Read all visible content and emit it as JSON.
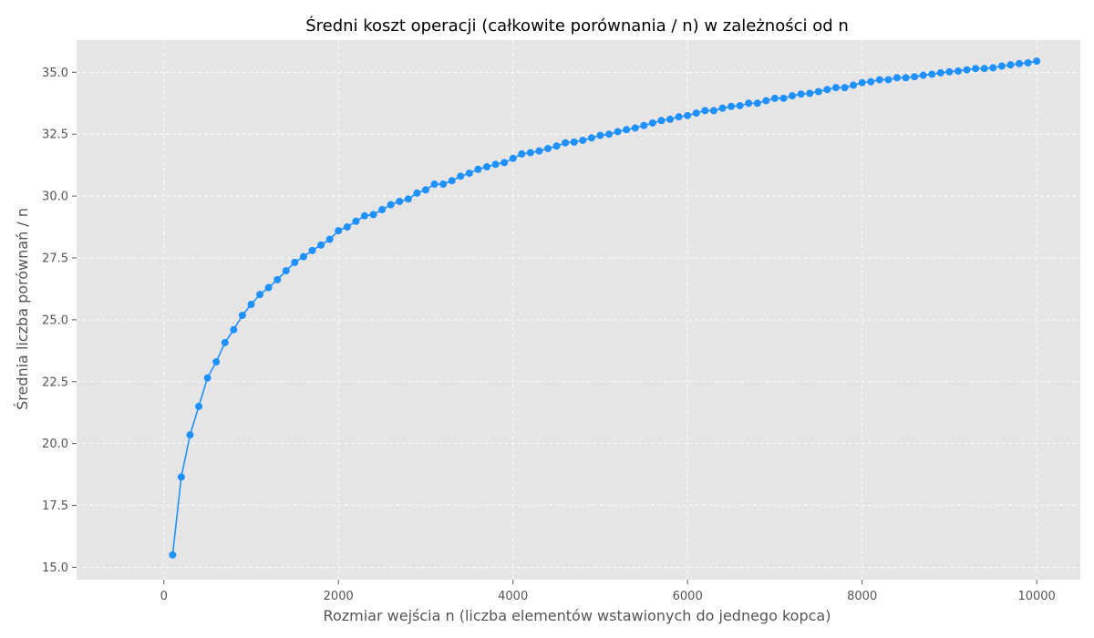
{
  "chart_data": {
    "type": "line",
    "title": "Średni koszt operacji (całkowite porównania / n) w zależności od n",
    "xlabel": "Rozmiar wejścia n (liczba elementów wstawionych do jednego kopca)",
    "ylabel": "Średnia liczba porównań / n",
    "xlim": [
      -1000,
      10500
    ],
    "ylim": [
      14.5,
      36.3
    ],
    "xticks": [
      0,
      2000,
      4000,
      6000,
      8000,
      10000
    ],
    "xtick_labels": [
      "0",
      "2000",
      "4000",
      "6000",
      "8000",
      "10000"
    ],
    "yticks": [
      15.0,
      17.5,
      20.0,
      22.5,
      25.0,
      27.5,
      30.0,
      32.5,
      35.0
    ],
    "ytick_labels": [
      "15.0",
      "17.5",
      "20.0",
      "22.5",
      "25.0",
      "27.5",
      "30.0",
      "32.5",
      "35.0"
    ],
    "grid": true,
    "line_color": "#1e90ff",
    "plot_background": "#e5e5e5",
    "series": [
      {
        "x": [
          100,
          200,
          300,
          400,
          500,
          600,
          700,
          800,
          900,
          1000,
          1100,
          1200,
          1300,
          1400,
          1500,
          1600,
          1700,
          1800,
          1900,
          2000,
          2100,
          2200,
          2300,
          2400,
          2500,
          2600,
          2700,
          2800,
          2900,
          3000,
          3100,
          3200,
          3300,
          3400,
          3500,
          3600,
          3700,
          3800,
          3900,
          4000,
          4100,
          4200,
          4300,
          4400,
          4500,
          4600,
          4700,
          4800,
          4900,
          5000,
          5100,
          5200,
          5300,
          5400,
          5500,
          5600,
          5700,
          5800,
          5900,
          6000,
          6100,
          6200,
          6300,
          6400,
          6500,
          6600,
          6700,
          6800,
          6900,
          7000,
          7100,
          7200,
          7300,
          7400,
          7500,
          7600,
          7700,
          7800,
          7900,
          8000,
          8100,
          8200,
          8300,
          8400,
          8500,
          8600,
          8700,
          8800,
          8900,
          9000,
          9100,
          9200,
          9300,
          9400,
          9500,
          9600,
          9700,
          9800,
          9900,
          10000
        ],
        "values": [
          15.5,
          18.65,
          20.35,
          21.5,
          22.65,
          23.3,
          24.08,
          24.6,
          25.18,
          25.62,
          26.02,
          26.3,
          26.62,
          26.98,
          27.32,
          27.55,
          27.8,
          28.02,
          28.25,
          28.6,
          28.75,
          28.98,
          29.2,
          29.25,
          29.45,
          29.65,
          29.78,
          29.88,
          30.12,
          30.25,
          30.48,
          30.48,
          30.62,
          30.8,
          30.92,
          31.08,
          31.18,
          31.28,
          31.35,
          31.52,
          31.7,
          31.75,
          31.82,
          31.92,
          32.02,
          32.15,
          32.18,
          32.25,
          32.35,
          32.45,
          32.5,
          32.6,
          32.68,
          32.75,
          32.85,
          32.95,
          33.05,
          33.1,
          33.2,
          33.25,
          33.35,
          33.45,
          33.45,
          33.55,
          33.62,
          33.65,
          33.75,
          33.75,
          33.85,
          33.95,
          33.95,
          34.05,
          34.12,
          34.15,
          34.22,
          34.3,
          34.38,
          34.38,
          34.48,
          34.58,
          34.62,
          34.7,
          34.7,
          34.78,
          34.78,
          34.82,
          34.88,
          34.92,
          34.98,
          35.02,
          35.05,
          35.1,
          35.15,
          35.15,
          35.18,
          35.25,
          35.3,
          35.35,
          35.38,
          35.45
        ]
      }
    ]
  }
}
